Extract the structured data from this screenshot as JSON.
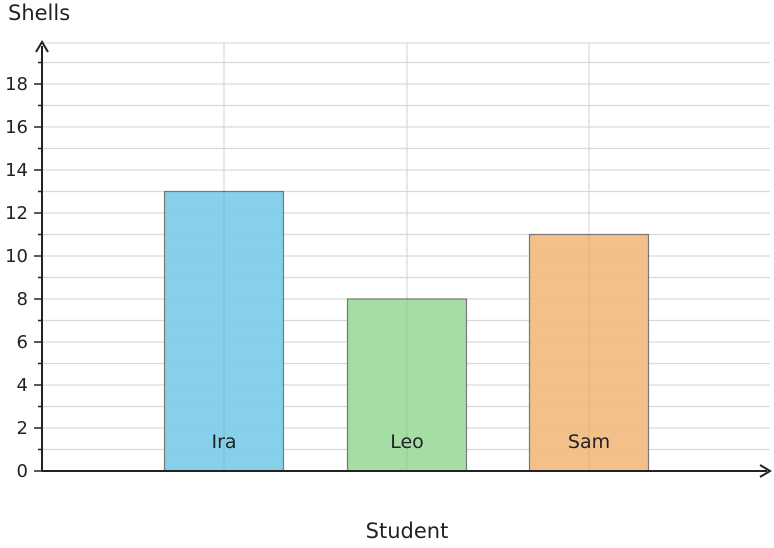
{
  "chart_data": {
    "type": "bar",
    "xlabel": "Student",
    "ylabel": "Shells",
    "categories": [
      "Ira",
      "Leo",
      "Sam"
    ],
    "values": [
      13,
      8,
      11
    ],
    "colors": [
      "#7fcde8",
      "#a0dba0",
      "#f2bd84"
    ],
    "ylim": [
      0,
      20
    ],
    "yticks": [
      "0",
      "2",
      "4",
      "6",
      "8",
      "10",
      "12",
      "14",
      "16",
      "18"
    ],
    "grid": true,
    "bar_labels_inside_bottom": true
  }
}
